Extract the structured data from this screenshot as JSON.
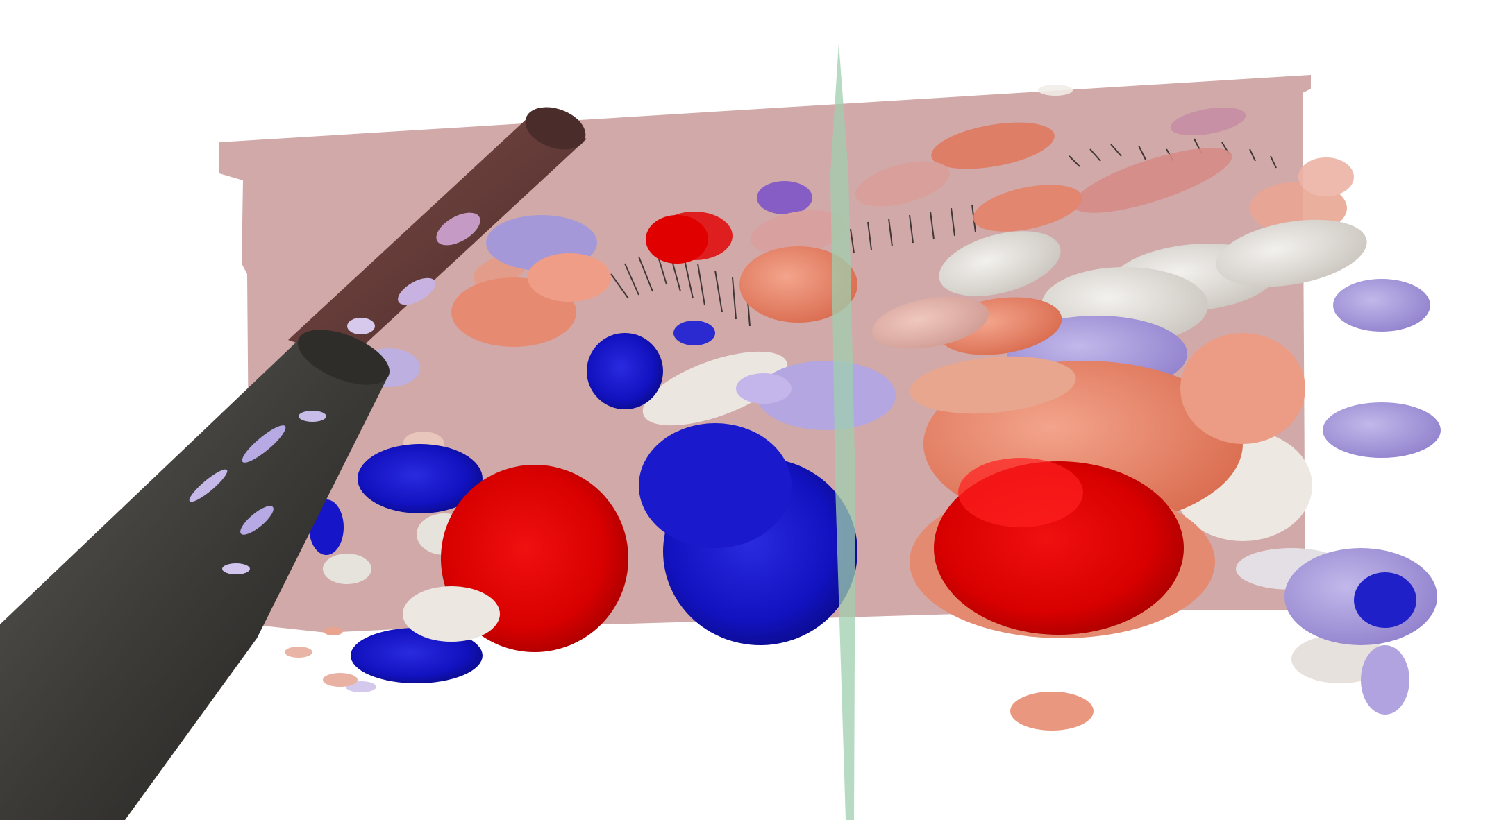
{
  "scene": {
    "background": "#ffffff",
    "colors": {
      "slice_plane": "#c99a9a",
      "vertical_plane": "#9fcfae",
      "cylinder": "#3b3a37",
      "cylinder_top": "#6a3f3c",
      "strong_red": "#e00000",
      "salmon": "#e9876d",
      "pale_pink": "#e6b7ad",
      "white_gray": "#e6e2dc",
      "lavender": "#a596d8",
      "strong_blue": "#1515c8",
      "glyph": "#111111"
    }
  }
}
